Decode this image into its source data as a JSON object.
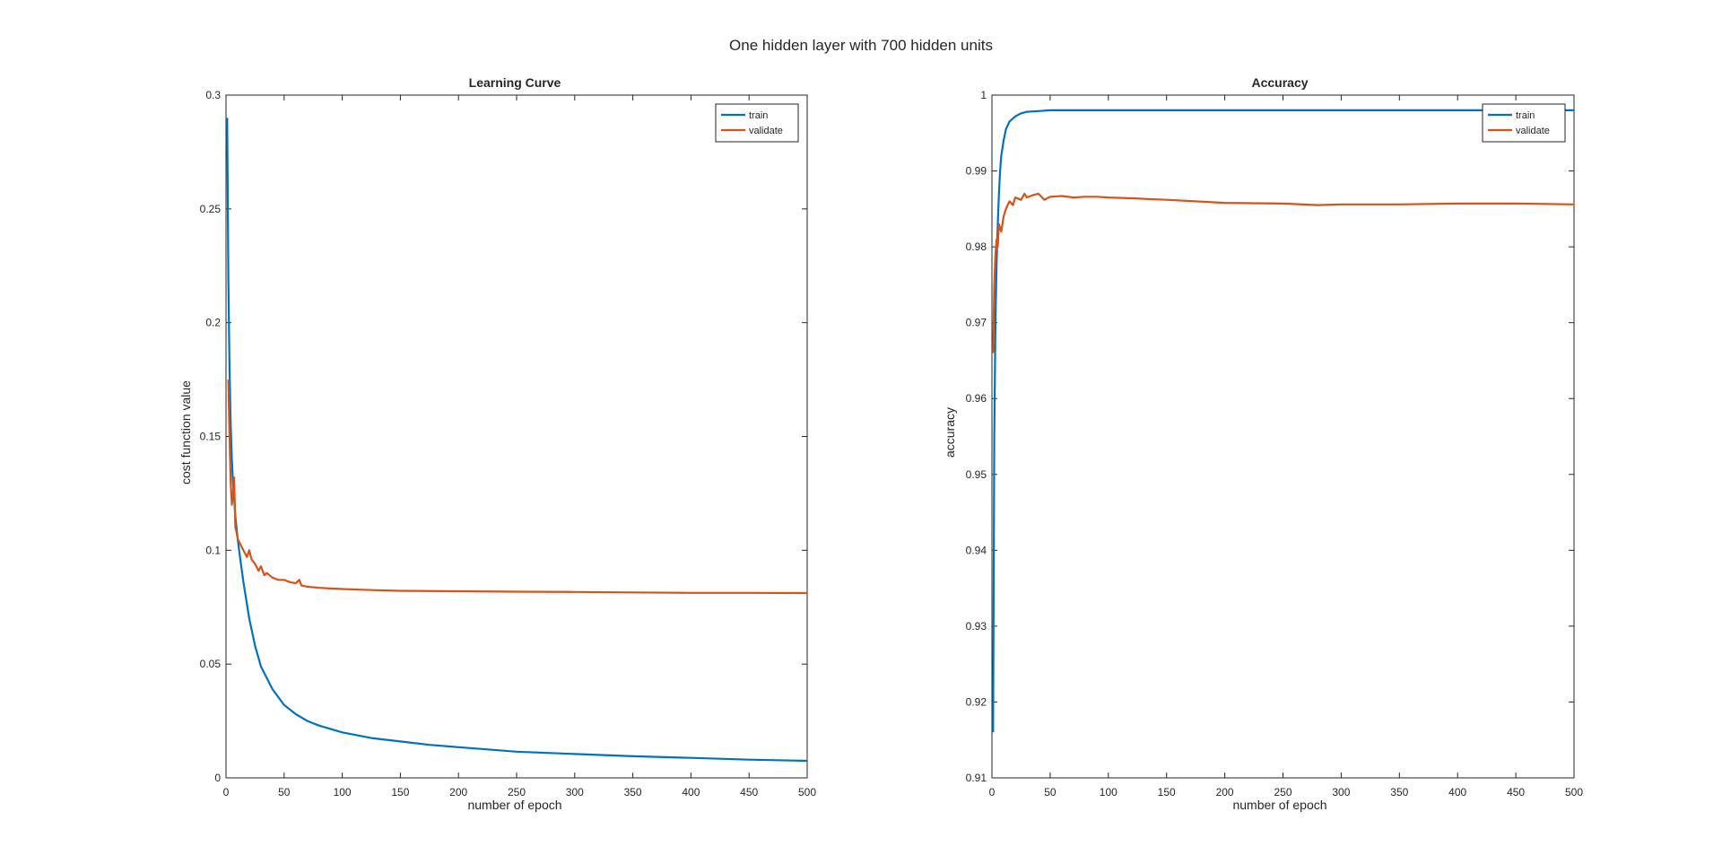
{
  "figure_title": "One hidden layer with 700 hidden units",
  "colors": {
    "train": "#0072BD",
    "validate": "#D95319",
    "axes": "#262626",
    "background": "#FFFFFF"
  },
  "chart_data": [
    {
      "type": "line",
      "title": "Learning Curve",
      "xlabel": "number of epoch",
      "ylabel": "cost function value",
      "xlim": [
        0,
        500
      ],
      "ylim": [
        0,
        0.3
      ],
      "xticks": [
        0,
        50,
        100,
        150,
        200,
        250,
        300,
        350,
        400,
        450,
        500
      ],
      "yticks": [
        0,
        0.05,
        0.1,
        0.15,
        0.2,
        0.25,
        0.3
      ],
      "grid": false,
      "legend": "top-right",
      "series": [
        {
          "name": "train",
          "color": "#0072BD",
          "x": [
            1,
            2,
            3,
            4,
            5,
            6,
            8,
            10,
            12,
            15,
            20,
            25,
            30,
            40,
            50,
            60,
            70,
            80,
            100,
            125,
            150,
            175,
            200,
            250,
            300,
            350,
            400,
            450,
            500
          ],
          "y": [
            0.29,
            0.22,
            0.18,
            0.155,
            0.14,
            0.13,
            0.115,
            0.105,
            0.097,
            0.086,
            0.07,
            0.058,
            0.049,
            0.039,
            0.032,
            0.028,
            0.025,
            0.023,
            0.02,
            0.0175,
            0.016,
            0.0145,
            0.0135,
            0.0115,
            0.0105,
            0.0095,
            0.0088,
            0.008,
            0.0075
          ]
        },
        {
          "name": "validate",
          "color": "#D95319",
          "x": [
            2,
            3,
            4,
            5,
            6,
            7,
            8,
            9,
            10,
            12,
            14,
            16,
            18,
            20,
            22,
            25,
            28,
            30,
            33,
            35,
            40,
            45,
            50,
            55,
            60,
            63,
            65,
            70,
            80,
            90,
            100,
            125,
            150,
            200,
            250,
            300,
            350,
            400,
            450,
            500
          ],
          "y": [
            0.175,
            0.15,
            0.13,
            0.12,
            0.125,
            0.132,
            0.11,
            0.108,
            0.105,
            0.103,
            0.101,
            0.099,
            0.097,
            0.1,
            0.096,
            0.094,
            0.091,
            0.093,
            0.089,
            0.09,
            0.088,
            0.087,
            0.087,
            0.086,
            0.0855,
            0.087,
            0.0845,
            0.084,
            0.0835,
            0.0832,
            0.083,
            0.0825,
            0.0822,
            0.082,
            0.0818,
            0.0817,
            0.0815,
            0.0813,
            0.0813,
            0.0812
          ]
        }
      ]
    },
    {
      "type": "line",
      "title": "Accuracy",
      "xlabel": "number of epoch",
      "ylabel": "accuracy",
      "xlim": [
        0,
        500
      ],
      "ylim": [
        0.91,
        1
      ],
      "xticks": [
        0,
        50,
        100,
        150,
        200,
        250,
        300,
        350,
        400,
        450,
        500
      ],
      "yticks": [
        0.91,
        0.92,
        0.93,
        0.94,
        0.95,
        0.96,
        0.97,
        0.98,
        0.99,
        1
      ],
      "grid": false,
      "legend": "top-right",
      "series": [
        {
          "name": "train",
          "color": "#0072BD",
          "x": [
            1,
            2,
            3,
            4,
            5,
            6,
            7,
            8,
            10,
            12,
            15,
            20,
            25,
            30,
            40,
            50,
            100,
            150,
            200,
            250,
            300,
            350,
            400,
            450,
            500
          ],
          "y": [
            0.916,
            0.955,
            0.97,
            0.978,
            0.983,
            0.987,
            0.99,
            0.992,
            0.994,
            0.9955,
            0.9965,
            0.9972,
            0.9976,
            0.9978,
            0.9979,
            0.998,
            0.998,
            0.998,
            0.998,
            0.998,
            0.998,
            0.998,
            0.998,
            0.998,
            0.998
          ]
        },
        {
          "name": "validate",
          "color": "#D95319",
          "x": [
            1,
            2,
            3,
            4,
            5,
            6,
            8,
            10,
            12,
            15,
            18,
            20,
            25,
            28,
            30,
            35,
            40,
            45,
            50,
            60,
            70,
            80,
            90,
            100,
            120,
            150,
            200,
            250,
            280,
            300,
            350,
            400,
            450,
            500
          ],
          "y": [
            0.966,
            0.975,
            0.979,
            0.981,
            0.98,
            0.983,
            0.982,
            0.984,
            0.985,
            0.986,
            0.9855,
            0.9865,
            0.9862,
            0.987,
            0.9865,
            0.9868,
            0.987,
            0.9862,
            0.9866,
            0.9867,
            0.9865,
            0.9866,
            0.9866,
            0.9865,
            0.9864,
            0.9862,
            0.9858,
            0.9857,
            0.9855,
            0.9856,
            0.9856,
            0.9857,
            0.9857,
            0.9856
          ]
        }
      ]
    }
  ]
}
